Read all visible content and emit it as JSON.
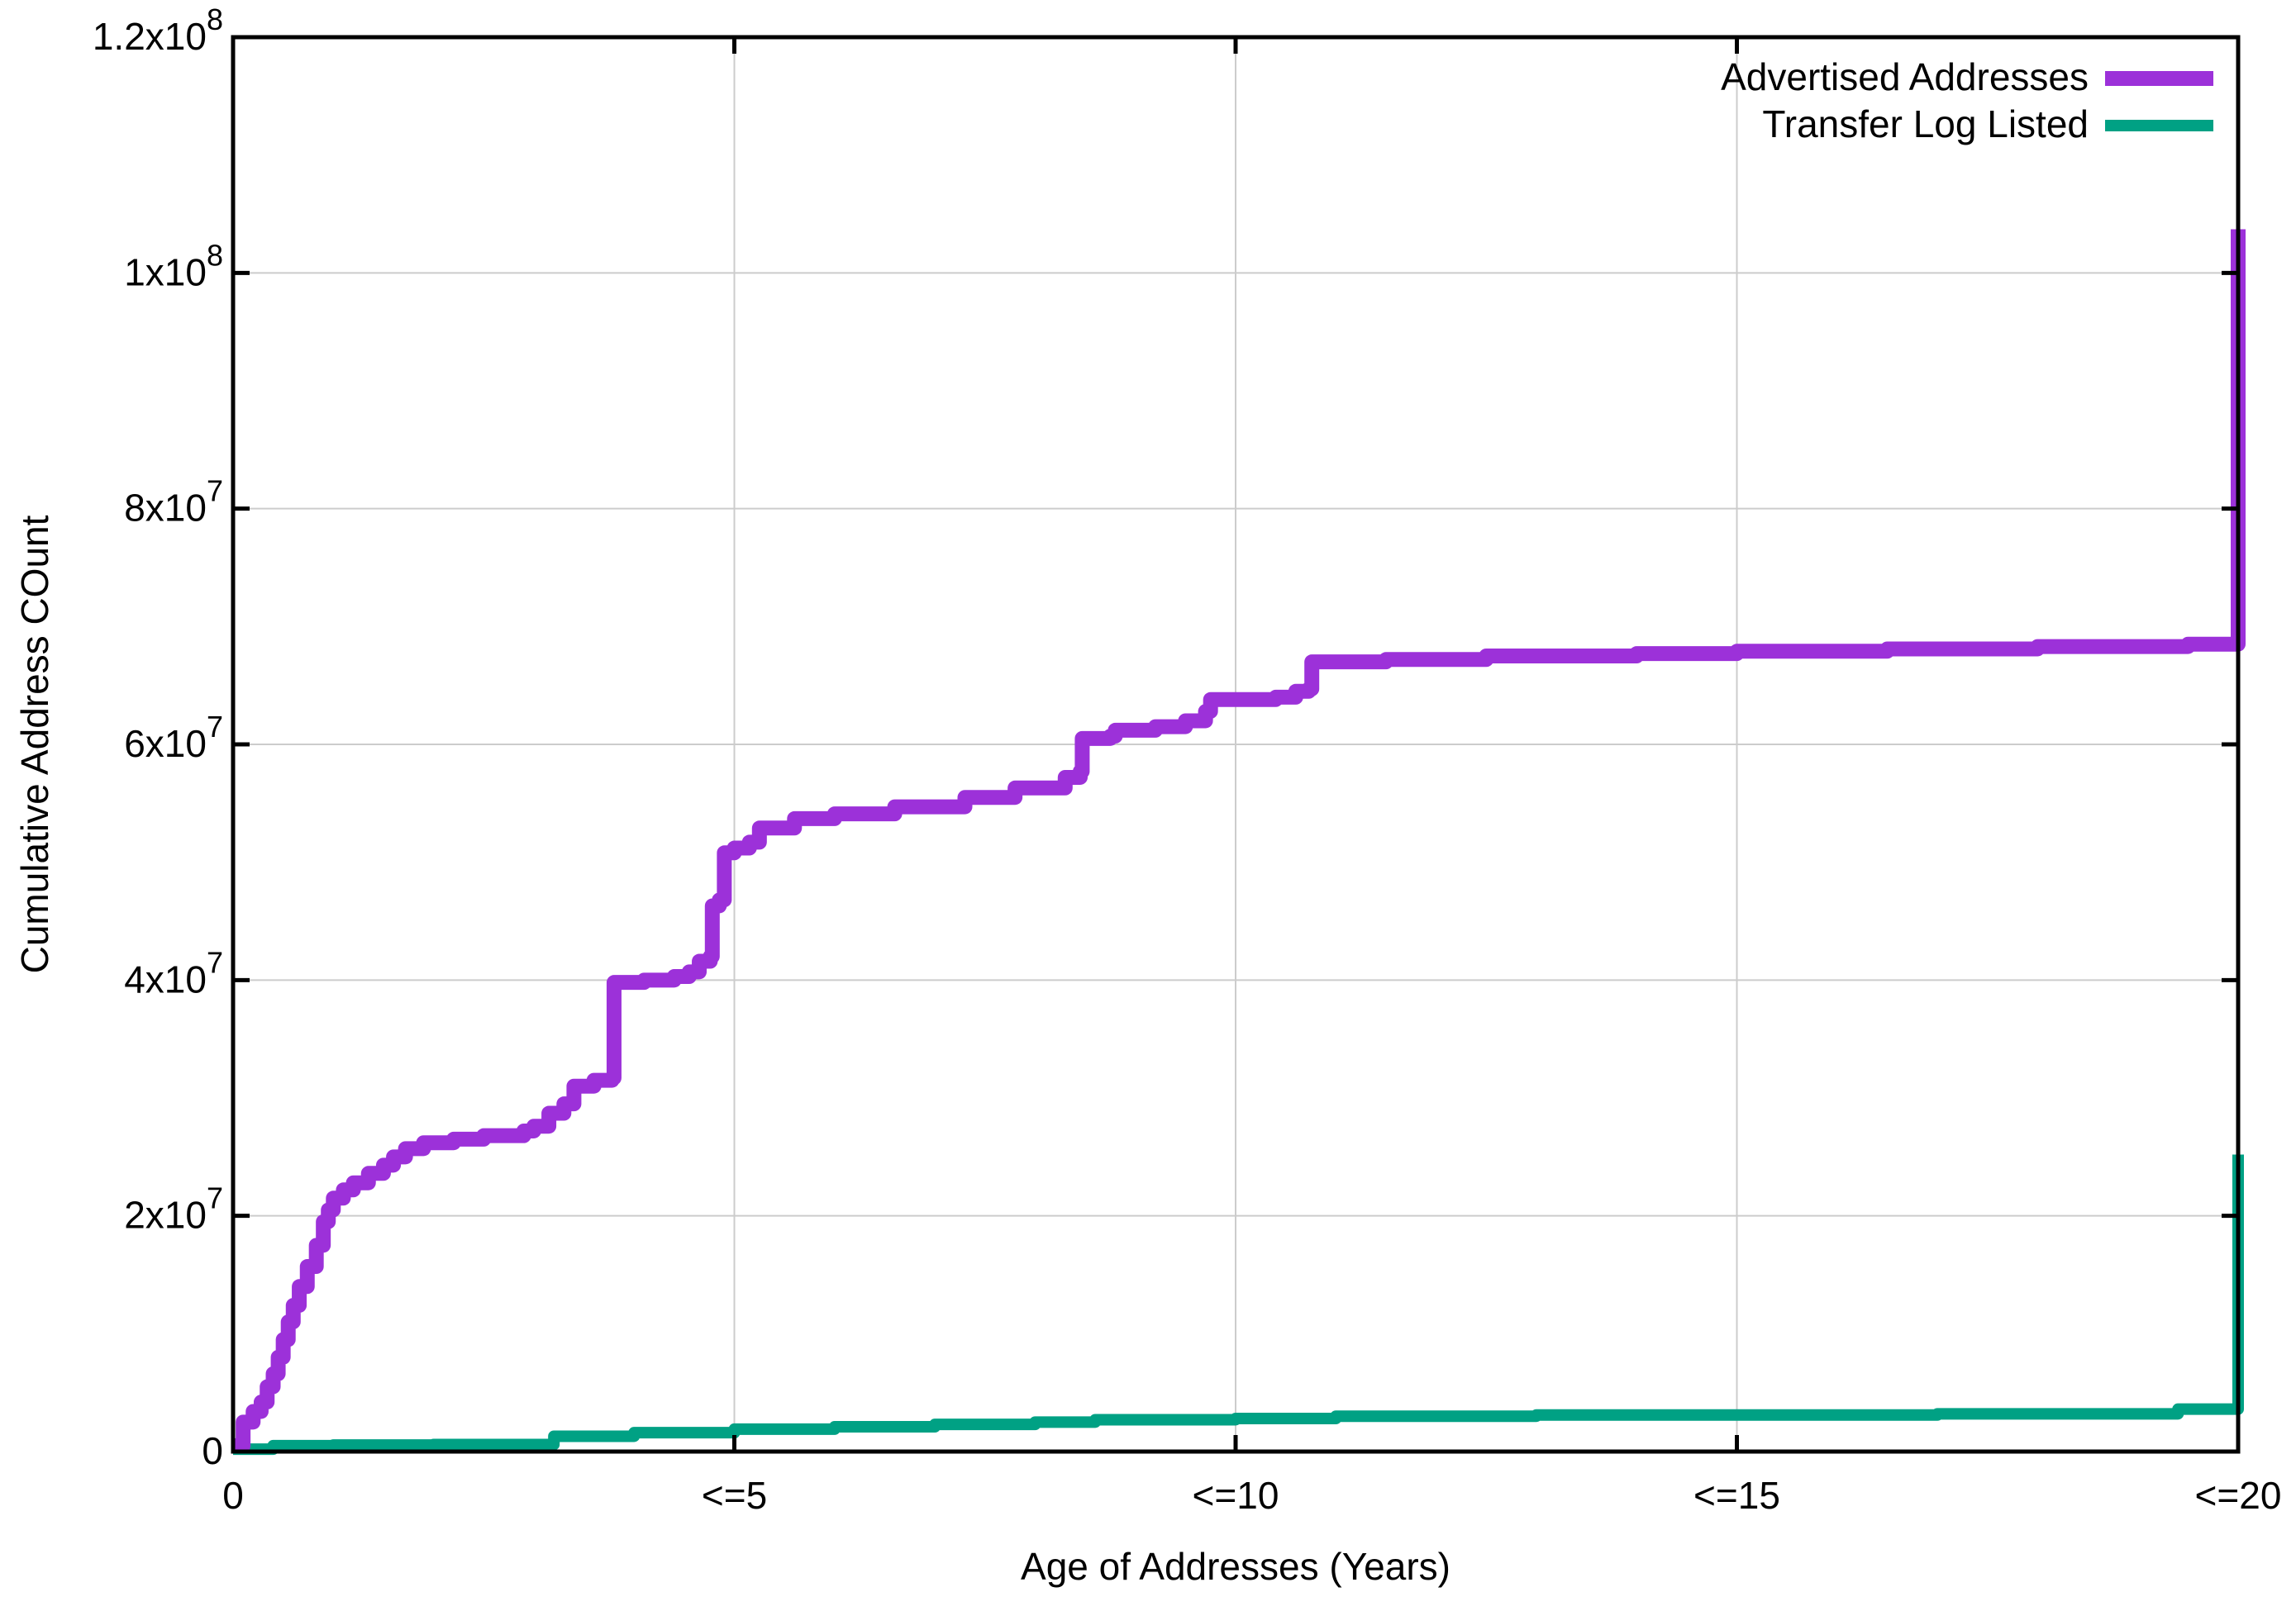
{
  "chart_data": {
    "type": "line",
    "title": "",
    "xlabel": "Age of Addresses (Years)",
    "ylabel": "Cumulative Address COunt",
    "xlim": [
      0,
      20
    ],
    "ylim": [
      0,
      120000000
    ],
    "grid": true,
    "legend_position": "top-right-inside",
    "background_color": "#ffffff",
    "axis_color": "#000000",
    "grid_color": "#cccccc",
    "x_ticks": [
      {
        "label": "0",
        "value": 0
      },
      {
        "label": "<=5",
        "value": 5
      },
      {
        "label": "<=10",
        "value": 10
      },
      {
        "label": "<=15",
        "value": 15
      },
      {
        "label": "<=20",
        "value": 20
      }
    ],
    "y_ticks": [
      {
        "label": "0",
        "value": 0
      },
      {
        "label": "2x10^7",
        "value": 20000000
      },
      {
        "label": "4x10^7",
        "value": 40000000
      },
      {
        "label": "6x10^7",
        "value": 60000000
      },
      {
        "label": "8x10^7",
        "value": 80000000
      },
      {
        "label": "1x10^8",
        "value": 100000000
      },
      {
        "label": "1.2x10^8",
        "value": 120000000
      }
    ],
    "series": [
      {
        "name": "Advertised Addresses",
        "color": "#9c31d9",
        "line_width": 18,
        "step": true,
        "points": [
          [
            0.0,
            500000
          ],
          [
            0.1,
            2500000
          ],
          [
            0.2,
            3400000
          ],
          [
            0.28,
            4200000
          ],
          [
            0.34,
            5500000
          ],
          [
            0.4,
            6600000
          ],
          [
            0.45,
            8000000
          ],
          [
            0.5,
            9500000
          ],
          [
            0.55,
            11000000
          ],
          [
            0.6,
            12400000
          ],
          [
            0.66,
            14000000
          ],
          [
            0.74,
            15700000
          ],
          [
            0.83,
            17500000
          ],
          [
            0.9,
            19500000
          ],
          [
            0.95,
            20500000
          ],
          [
            1.0,
            21500000
          ],
          [
            1.1,
            22200000
          ],
          [
            1.2,
            22800000
          ],
          [
            1.35,
            23600000
          ],
          [
            1.5,
            24300000
          ],
          [
            1.6,
            25000000
          ],
          [
            1.72,
            25700000
          ],
          [
            1.9,
            26200000
          ],
          [
            2.2,
            26500000
          ],
          [
            2.5,
            26800000
          ],
          [
            2.9,
            27200000
          ],
          [
            3.0,
            27600000
          ],
          [
            3.15,
            28700000
          ],
          [
            3.3,
            29500000
          ],
          [
            3.4,
            31000000
          ],
          [
            3.6,
            31500000
          ],
          [
            3.78,
            31700000
          ],
          [
            3.8,
            39800000
          ],
          [
            4.1,
            40000000
          ],
          [
            4.4,
            40300000
          ],
          [
            4.55,
            40700000
          ],
          [
            4.65,
            41600000
          ],
          [
            4.76,
            42000000
          ],
          [
            4.78,
            46300000
          ],
          [
            4.85,
            46800000
          ],
          [
            4.9,
            50800000
          ],
          [
            5.0,
            51200000
          ],
          [
            5.15,
            51700000
          ],
          [
            5.25,
            52900000
          ],
          [
            5.6,
            53700000
          ],
          [
            6.0,
            54100000
          ],
          [
            6.6,
            54700000
          ],
          [
            7.3,
            55500000
          ],
          [
            7.8,
            56300000
          ],
          [
            8.3,
            57200000
          ],
          [
            8.45,
            57700000
          ],
          [
            8.47,
            60500000
          ],
          [
            8.75,
            60700000
          ],
          [
            8.8,
            61200000
          ],
          [
            9.2,
            61500000
          ],
          [
            9.5,
            62000000
          ],
          [
            9.7,
            62800000
          ],
          [
            9.75,
            63800000
          ],
          [
            10.4,
            64000000
          ],
          [
            10.6,
            64500000
          ],
          [
            10.73,
            64700000
          ],
          [
            10.76,
            67000000
          ],
          [
            11.5,
            67200000
          ],
          [
            12.5,
            67500000
          ],
          [
            14.0,
            67700000
          ],
          [
            15.0,
            67900000
          ],
          [
            16.5,
            68100000
          ],
          [
            18.0,
            68300000
          ],
          [
            19.5,
            68500000
          ],
          [
            20.0,
            68700000
          ],
          [
            20.0,
            103700000
          ]
        ]
      },
      {
        "name": "Transfer Log Listed",
        "color": "#00a184",
        "line_width": 14,
        "step": true,
        "points": [
          [
            0.0,
            200000
          ],
          [
            0.4,
            500000
          ],
          [
            1.0,
            550000
          ],
          [
            2.0,
            600000
          ],
          [
            3.1,
            600000
          ],
          [
            3.2,
            1300000
          ],
          [
            4.0,
            1600000
          ],
          [
            5.0,
            1900000
          ],
          [
            6.0,
            2100000
          ],
          [
            7.0,
            2300000
          ],
          [
            8.0,
            2500000
          ],
          [
            8.6,
            2700000
          ],
          [
            10.0,
            2800000
          ],
          [
            11.0,
            3000000
          ],
          [
            13.0,
            3100000
          ],
          [
            15.0,
            3100000
          ],
          [
            17.0,
            3200000
          ],
          [
            19.3,
            3200000
          ],
          [
            19.4,
            3600000
          ],
          [
            20.0,
            3600000
          ],
          [
            20.0,
            25200000
          ]
        ]
      }
    ]
  }
}
